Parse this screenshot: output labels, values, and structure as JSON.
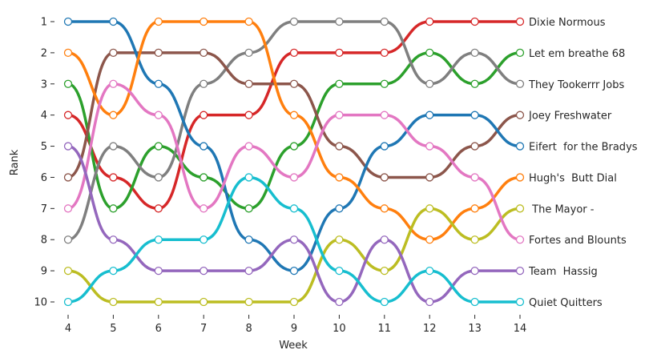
{
  "chart_data": {
    "type": "line",
    "title": "",
    "xlabel": "Week",
    "ylabel": "Rank",
    "x": [
      4,
      5,
      6,
      7,
      8,
      9,
      10,
      11,
      12,
      13,
      14
    ],
    "xlim": [
      4,
      14
    ],
    "ylim": [
      10,
      1
    ],
    "y_inverted": true,
    "yticks": [
      1,
      2,
      3,
      4,
      5,
      6,
      7,
      8,
      9,
      10
    ],
    "grid": false,
    "legend": "series names labeled at right end of lines",
    "series": [
      {
        "name": "Dixie Normous",
        "color": "#d62728",
        "values": [
          4,
          6,
          7,
          4,
          4,
          2,
          2,
          2,
          1,
          1,
          1
        ]
      },
      {
        "name": "Let em breathe 68",
        "color": "#2ca02c",
        "values": [
          3,
          7,
          5,
          6,
          7,
          5,
          3,
          3,
          2,
          3,
          2
        ]
      },
      {
        "name": "They Tookerrr Jobs",
        "color": "#7f7f7f",
        "values": [
          8,
          5,
          6,
          3,
          2,
          1,
          1,
          1,
          3,
          2,
          3
        ]
      },
      {
        "name": "Joey Freshwater",
        "color": "#8c564b",
        "values": [
          6,
          2,
          2,
          2,
          3,
          3,
          5,
          6,
          6,
          5,
          4
        ]
      },
      {
        "name": "Eifert  for the Bradys",
        "color": "#1f77b4",
        "values": [
          1,
          1,
          3,
          5,
          8,
          9,
          7,
          5,
          4,
          4,
          5
        ]
      },
      {
        "name": "Hugh's  Butt Dial",
        "color": "#ff7f0e",
        "values": [
          2,
          4,
          1,
          1,
          1,
          4,
          6,
          7,
          8,
          7,
          6
        ]
      },
      {
        "name": " The Mayor -",
        "color": "#bcbd22",
        "values": [
          9,
          10,
          10,
          10,
          10,
          10,
          8,
          9,
          7,
          8,
          7
        ]
      },
      {
        "name": "Fortes and Blounts",
        "color": "#e377c2",
        "values": [
          7,
          3,
          4,
          7,
          5,
          6,
          4,
          4,
          5,
          6,
          8
        ]
      },
      {
        "name": "Team  Hassig",
        "color": "#9467bd",
        "values": [
          5,
          8,
          9,
          9,
          9,
          8,
          10,
          8,
          10,
          9,
          9
        ]
      },
      {
        "name": "Quiet Quitters",
        "color": "#17becf",
        "values": [
          10,
          9,
          8,
          8,
          6,
          7,
          9,
          10,
          9,
          10,
          10
        ]
      }
    ]
  }
}
